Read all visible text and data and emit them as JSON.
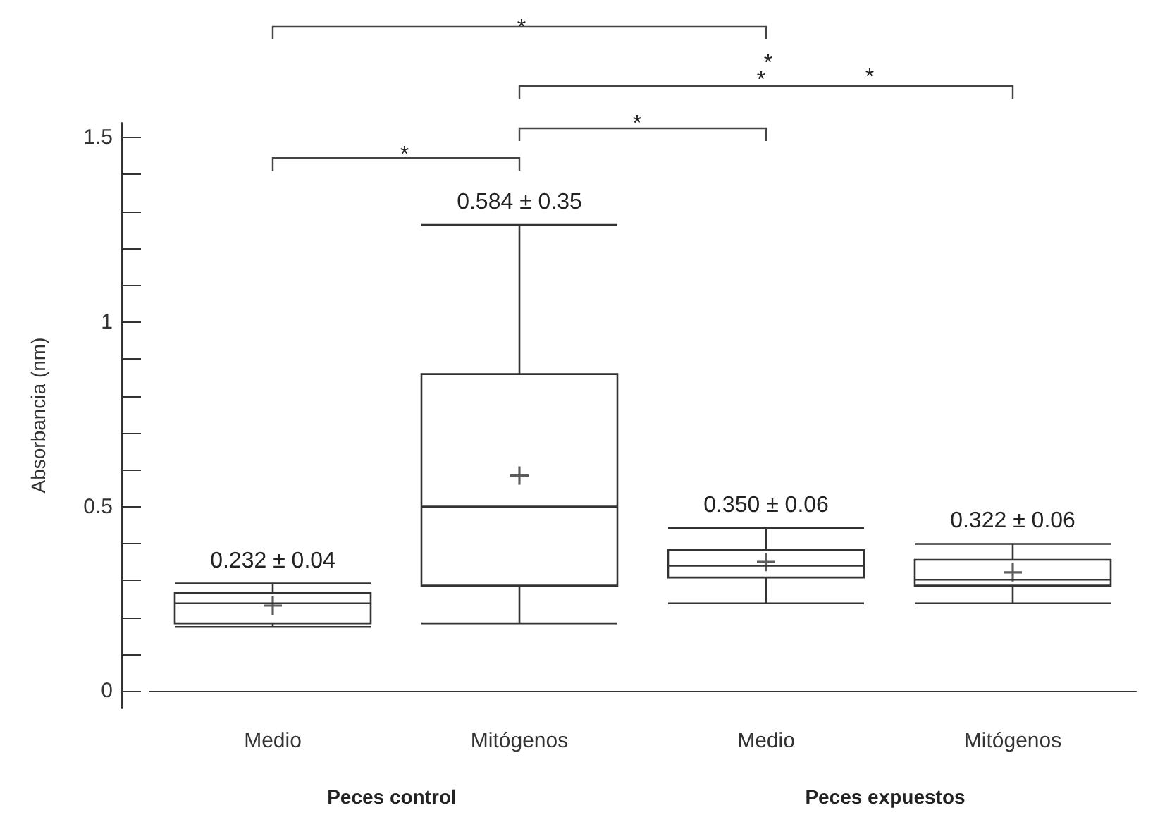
{
  "chart_data": {
    "type": "box",
    "ylabel": "Absorbancia (nm)",
    "categories": [
      "Medio",
      "Mitógenos",
      "Medio",
      "Mitógenos"
    ],
    "series": [
      {
        "color": "#333333",
        "boxes": [
          {
            "low": 0.174,
            "q1": 0.184,
            "median": 0.238,
            "q3": 0.266,
            "high": 0.292,
            "mean": 0.232
          },
          {
            "low": 0.184,
            "q1": 0.286,
            "median": 0.5,
            "q3": 0.859,
            "high": 1.263,
            "mean": 0.584
          },
          {
            "low": 0.238,
            "q1": 0.308,
            "median": 0.34,
            "q3": 0.382,
            "high": 0.442,
            "mean": 0.35
          },
          {
            "low": 0.238,
            "q1": 0.286,
            "median": 0.302,
            "q3": 0.356,
            "high": 0.399,
            "mean": 0.322
          }
        ]
      }
    ],
    "ylim": [
      -0.045,
      1.54
    ],
    "yticks": [
      0,
      {
        "value": 0.1,
        "label": null
      },
      {
        "value": 0.2,
        "label": null
      },
      {
        "value": 0.3,
        "label": null
      },
      {
        "value": 0.4,
        "label": null
      },
      0.5,
      {
        "value": 0.6,
        "label": null
      },
      {
        "value": 0.7,
        "label": null
      },
      {
        "value": 0.8,
        "label": null
      },
      {
        "value": 0.9,
        "label": null
      },
      1,
      {
        "value": 1.1,
        "label": null
      },
      {
        "value": 1.2,
        "label": null
      },
      {
        "value": 1.3,
        "label": null
      },
      {
        "value": 1.4,
        "label": null
      },
      1.5
    ],
    "annotations": [
      "0.232 ± 0.04",
      "0.584 ± 0.35",
      "0.350 ± 0.06",
      "0.322 ± 0.06",
      "Peces control",
      "Peces expuestos",
      "*",
      "*",
      "*",
      "*",
      "*",
      "*"
    ]
  }
}
